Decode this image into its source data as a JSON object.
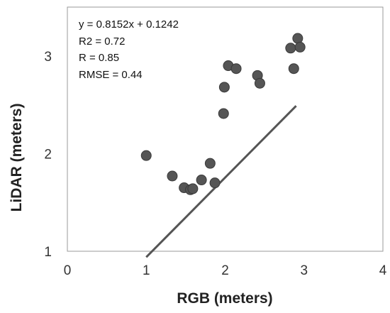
{
  "chart_data": {
    "type": "scatter",
    "xlabel": "RGB (meters)",
    "ylabel": "LiDAR (meters)",
    "xlim": [
      0,
      4
    ],
    "ylim": [
      1,
      3.5
    ],
    "xticks": [
      0,
      1,
      2,
      3,
      4
    ],
    "yticks": [
      1,
      2,
      3
    ],
    "tick_labels_x": [
      "0",
      "1",
      "2",
      "3",
      "4"
    ],
    "tick_labels_y": [
      "1",
      "2",
      "3"
    ],
    "grid": false,
    "points": [
      {
        "x": 1.0,
        "y": 1.98
      },
      {
        "x": 1.33,
        "y": 1.77
      },
      {
        "x": 1.48,
        "y": 1.65
      },
      {
        "x": 1.56,
        "y": 1.63
      },
      {
        "x": 1.59,
        "y": 1.64
      },
      {
        "x": 1.7,
        "y": 1.73
      },
      {
        "x": 1.81,
        "y": 1.9
      },
      {
        "x": 1.87,
        "y": 1.7
      },
      {
        "x": 1.98,
        "y": 2.41
      },
      {
        "x": 1.99,
        "y": 2.68
      },
      {
        "x": 2.04,
        "y": 2.9
      },
      {
        "x": 2.14,
        "y": 2.87
      },
      {
        "x": 2.41,
        "y": 2.8
      },
      {
        "x": 2.44,
        "y": 2.72
      },
      {
        "x": 2.83,
        "y": 3.08
      },
      {
        "x": 2.87,
        "y": 2.87
      },
      {
        "x": 2.92,
        "y": 3.18
      },
      {
        "x": 2.95,
        "y": 3.09
      }
    ],
    "trendline": {
      "slope": 0.8152,
      "intercept": 0.1242,
      "x_range": [
        1.0,
        2.9
      ]
    },
    "annotations": [
      "y = 0.8152x + 0.1242",
      "R2 = 0.72",
      "R = 0.85",
      "RMSE = 0.44"
    ],
    "colors": {
      "marker": "#555555",
      "marker_stroke": "#3a3a3a",
      "line": "#555555",
      "axis": "#999999"
    }
  }
}
